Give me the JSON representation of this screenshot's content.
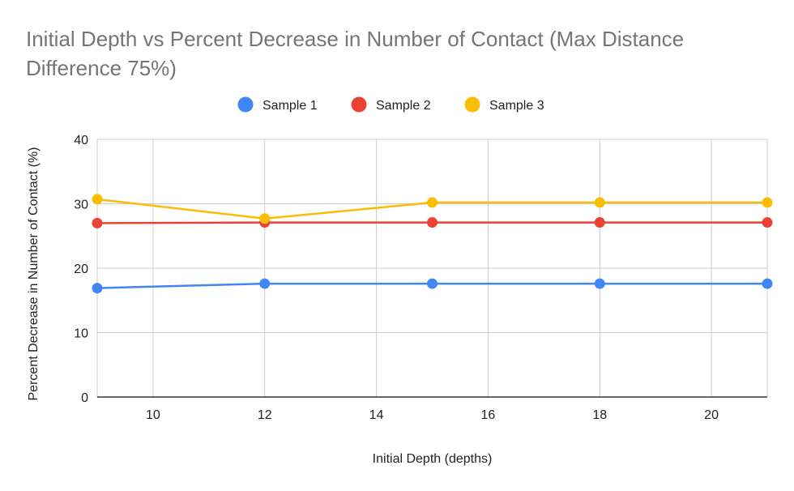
{
  "chart_data": {
    "type": "line",
    "title": "Initial Depth vs Percent Decrease in Number of Contact (Max Distance Difference 75%)",
    "xlabel": "Initial Depth (depths)",
    "ylabel": "Percent Decrease in Number of Contact (%)",
    "xlim": [
      9,
      21
    ],
    "ylim": [
      0,
      40
    ],
    "x_ticks": [
      10,
      12,
      14,
      16,
      18,
      20
    ],
    "y_ticks": [
      0,
      10,
      20,
      30,
      40
    ],
    "grid": true,
    "legend_position": "top",
    "x": [
      9,
      12,
      15,
      18,
      21
    ],
    "series": [
      {
        "name": "Sample 1",
        "color": "#4285F4",
        "values": [
          16.9,
          17.6,
          17.6,
          17.6,
          17.6
        ]
      },
      {
        "name": "Sample 2",
        "color": "#EA4335",
        "values": [
          27.0,
          27.1,
          27.1,
          27.1,
          27.1
        ]
      },
      {
        "name": "Sample 3",
        "color": "#FBBC04",
        "values": [
          30.7,
          27.7,
          30.2,
          30.2,
          30.2
        ]
      }
    ]
  }
}
